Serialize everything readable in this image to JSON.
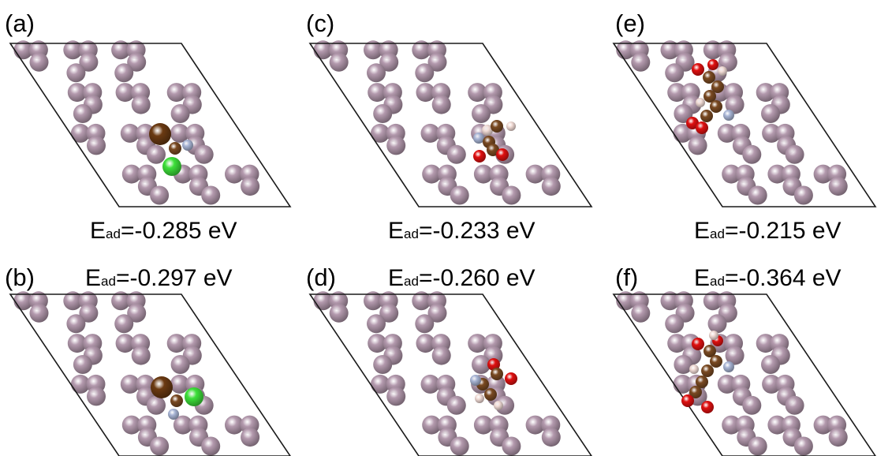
{
  "figure": {
    "panels": [
      {
        "id": "a",
        "label": "(a)",
        "energy_symbol": "E",
        "energy_subscript": "ad",
        "energy_value": "=-0.285 eV",
        "label_position": "below",
        "adsorbate": "a",
        "colors": {
          "slab": "#b49aae",
          "frame": "#1a1a1a"
        }
      },
      {
        "id": "b",
        "label": "(b)",
        "energy_symbol": "E",
        "energy_subscript": "ad",
        "energy_value": "=-0.297 eV",
        "label_position": "above",
        "adsorbate": "b",
        "colors": {
          "slab": "#b49aae",
          "frame": "#1a1a1a"
        }
      },
      {
        "id": "c",
        "label": "(c)",
        "energy_symbol": "E",
        "energy_subscript": "ad",
        "energy_value": "=-0.233 eV",
        "label_position": "below",
        "adsorbate": "c",
        "colors": {
          "slab": "#b49aae",
          "frame": "#1a1a1a"
        }
      },
      {
        "id": "d",
        "label": "(d)",
        "energy_symbol": "E",
        "energy_subscript": "ad",
        "energy_value": "=-0.260 eV",
        "label_position": "above",
        "adsorbate": "d",
        "colors": {
          "slab": "#b49aae",
          "frame": "#1a1a1a"
        }
      },
      {
        "id": "e",
        "label": "(e)",
        "energy_symbol": "E",
        "energy_subscript": "ad",
        "energy_value": "=-0.215 eV",
        "label_position": "below",
        "adsorbate": "e",
        "colors": {
          "slab": "#b49aae",
          "frame": "#1a1a1a"
        }
      },
      {
        "id": "f",
        "label": "(f)",
        "energy_symbol": "E",
        "energy_subscript": "ad",
        "energy_value": "=-0.364 eV",
        "label_position": "above",
        "adsorbate": "f",
        "colors": {
          "slab": "#b49aae",
          "frame": "#1a1a1a"
        }
      }
    ],
    "atom_colors": {
      "slab": "#b49aae",
      "carbon": "#7a4a22",
      "oxygen": "#e01010",
      "nitrogen": "#a9b6d6",
      "hydrogen": "#f2dcd6",
      "chlorine": "#3ee03a",
      "bromine": "#6b3a12"
    }
  }
}
